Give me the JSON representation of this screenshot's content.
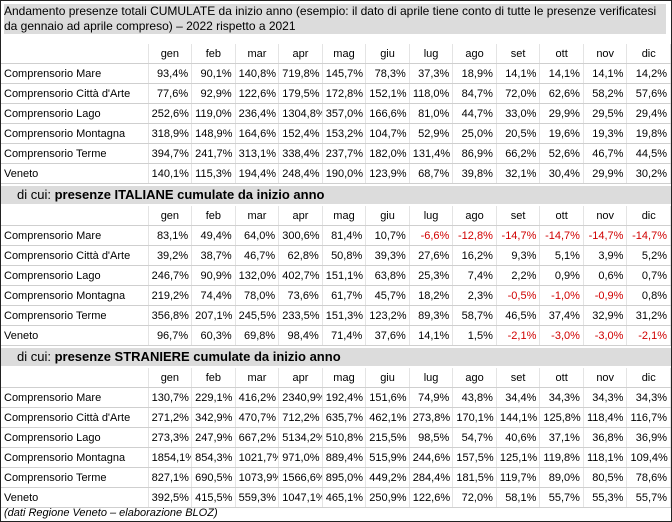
{
  "title": "Andamento presenze totali CUMULATE da inizio anno (esempio: il dato di aprile tiene conto di tutte le presenze verificatesi da gennaio ad aprile compreso) – 2022 rispetto a 2021",
  "months": [
    "gen",
    "feb",
    "mar",
    "apr",
    "mag",
    "giu",
    "lug",
    "ago",
    "set",
    "ott",
    "nov",
    "dic"
  ],
  "sections": [
    {
      "lead": "",
      "heading": "",
      "rows": [
        {
          "name": "Comprensorio Mare",
          "values": [
            "93,4%",
            "90,1%",
            "140,8%",
            "719,8%",
            "145,7%",
            "78,3%",
            "37,3%",
            "18,9%",
            "14,1%",
            "14,1%",
            "14,1%",
            "14,2%"
          ]
        },
        {
          "name": "Comprensorio Città d'Arte",
          "values": [
            "77,6%",
            "92,9%",
            "122,6%",
            "179,5%",
            "172,8%",
            "152,1%",
            "118,0%",
            "84,7%",
            "72,0%",
            "62,6%",
            "58,2%",
            "57,6%"
          ]
        },
        {
          "name": "Comprensorio Lago",
          "values": [
            "252,6%",
            "119,0%",
            "236,4%",
            "1304,8%",
            "357,0%",
            "166,6%",
            "81,0%",
            "44,7%",
            "33,0%",
            "29,9%",
            "29,5%",
            "29,4%"
          ]
        },
        {
          "name": "Comprensorio Montagna",
          "values": [
            "318,9%",
            "148,9%",
            "164,6%",
            "152,4%",
            "153,2%",
            "104,7%",
            "52,9%",
            "25,0%",
            "20,5%",
            "19,6%",
            "19,3%",
            "19,8%"
          ]
        },
        {
          "name": "Comprensorio Terme",
          "values": [
            "394,7%",
            "241,7%",
            "313,1%",
            "338,4%",
            "237,7%",
            "182,0%",
            "131,4%",
            "86,9%",
            "66,2%",
            "52,6%",
            "46,7%",
            "44,5%"
          ]
        },
        {
          "name": "Veneto",
          "values": [
            "140,1%",
            "115,3%",
            "194,4%",
            "248,4%",
            "190,0%",
            "123,9%",
            "68,7%",
            "39,8%",
            "32,1%",
            "30,4%",
            "29,9%",
            "30,2%"
          ]
        }
      ]
    },
    {
      "lead": "di cui: ",
      "heading": "presenze ITALIANE cumulate da inizio anno",
      "rows": [
        {
          "name": "Comprensorio Mare",
          "values": [
            "83,1%",
            "49,4%",
            "64,0%",
            "300,6%",
            "81,4%",
            "10,7%",
            "-6,6%",
            "-12,8%",
            "-14,7%",
            "-14,7%",
            "-14,7%",
            "-14,7%"
          ]
        },
        {
          "name": "Comprensorio Città d'Arte",
          "values": [
            "39,2%",
            "38,7%",
            "46,7%",
            "62,8%",
            "50,8%",
            "39,3%",
            "27,6%",
            "16,2%",
            "9,3%",
            "5,1%",
            "3,9%",
            "5,2%"
          ]
        },
        {
          "name": "Comprensorio Lago",
          "values": [
            "246,7%",
            "90,9%",
            "132,0%",
            "402,7%",
            "151,1%",
            "63,8%",
            "25,3%",
            "7,4%",
            "2,2%",
            "0,9%",
            "0,6%",
            "0,7%"
          ]
        },
        {
          "name": "Comprensorio Montagna",
          "values": [
            "219,2%",
            "74,4%",
            "78,0%",
            "73,6%",
            "61,7%",
            "45,7%",
            "18,2%",
            "2,3%",
            "-0,5%",
            "-1,0%",
            "-0,9%",
            "0,8%"
          ]
        },
        {
          "name": "Comprensorio Terme",
          "values": [
            "356,8%",
            "207,1%",
            "245,5%",
            "233,5%",
            "151,3%",
            "123,2%",
            "89,3%",
            "58,7%",
            "46,5%",
            "37,4%",
            "32,9%",
            "31,2%"
          ]
        },
        {
          "name": "Veneto",
          "values": [
            "96,7%",
            "60,3%",
            "69,8%",
            "98,4%",
            "71,4%",
            "37,6%",
            "14,1%",
            "1,5%",
            "-2,1%",
            "-3,0%",
            "-3,0%",
            "-2,1%"
          ]
        }
      ]
    },
    {
      "lead": "di cui: ",
      "heading": "presenze STRANIERE cumulate da inizio anno",
      "rows": [
        {
          "name": "Comprensorio Mare",
          "values": [
            "130,7%",
            "229,1%",
            "416,2%",
            "2340,9%",
            "192,4%",
            "151,6%",
            "74,9%",
            "43,8%",
            "34,4%",
            "34,3%",
            "34,3%",
            "34,3%"
          ]
        },
        {
          "name": "Comprensorio Città d'Arte",
          "values": [
            "271,2%",
            "342,9%",
            "470,7%",
            "712,2%",
            "635,7%",
            "462,1%",
            "273,8%",
            "170,1%",
            "144,1%",
            "125,8%",
            "118,4%",
            "116,7%"
          ]
        },
        {
          "name": "Comprensorio Lago",
          "values": [
            "273,3%",
            "247,9%",
            "667,2%",
            "5134,2%",
            "510,8%",
            "215,5%",
            "98,5%",
            "54,7%",
            "40,6%",
            "37,1%",
            "36,8%",
            "36,9%"
          ]
        },
        {
          "name": "Comprensorio Montagna",
          "values": [
            "1854,1%",
            "854,3%",
            "1021,7%",
            "971,0%",
            "889,4%",
            "515,9%",
            "244,6%",
            "157,5%",
            "125,1%",
            "119,8%",
            "118,1%",
            "109,4%"
          ]
        },
        {
          "name": "Comprensorio Terme",
          "values": [
            "827,1%",
            "690,5%",
            "1073,9%",
            "1566,6%",
            "895,0%",
            "449,2%",
            "284,4%",
            "181,5%",
            "119,7%",
            "89,0%",
            "80,5%",
            "78,6%"
          ]
        },
        {
          "name": "Veneto",
          "values": [
            "392,5%",
            "415,5%",
            "559,3%",
            "1047,1%",
            "465,1%",
            "250,9%",
            "122,6%",
            "72,0%",
            "58,1%",
            "55,7%",
            "55,3%",
            "55,7%"
          ]
        }
      ]
    }
  ],
  "footer": "(dati Regione Veneto – elaborazione BLOZ)",
  "colors": {
    "header_bg": "#dcdcdc",
    "negative": "#d00000"
  }
}
